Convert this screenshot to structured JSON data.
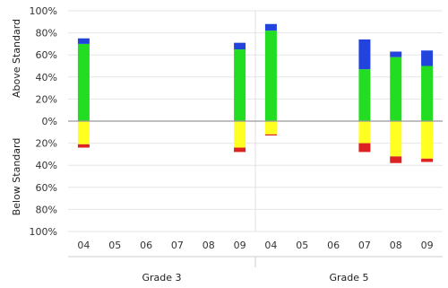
{
  "chart_data": {
    "type": "bar",
    "subtype": "diverging-stacked",
    "ylim": [
      -100,
      100
    ],
    "yticks": [
      {
        "v": 100,
        "label": "100%"
      },
      {
        "v": 80,
        "label": "80%"
      },
      {
        "v": 60,
        "label": "60%"
      },
      {
        "v": 40,
        "label": "40%"
      },
      {
        "v": 20,
        "label": "20%"
      },
      {
        "v": 0,
        "label": "0%"
      },
      {
        "v": -20,
        "label": "20%"
      },
      {
        "v": -40,
        "label": "40%"
      },
      {
        "v": -60,
        "label": "60%"
      },
      {
        "v": -80,
        "label": "80%"
      },
      {
        "v": -100,
        "label": "100%"
      }
    ],
    "ylabel_top": "Above Standard",
    "ylabel_bottom": "Below Standard",
    "grid": true,
    "groups": [
      {
        "label": "Grade 3",
        "categories": [
          "04",
          "05",
          "06",
          "07",
          "08",
          "09"
        ]
      },
      {
        "label": "Grade 5",
        "categories": [
          "04",
          "05",
          "06",
          "07",
          "08",
          "09"
        ]
      }
    ],
    "bars": [
      {
        "group": 0,
        "category": "04",
        "above": [
          {
            "value": 70,
            "color": "#22dd22"
          },
          {
            "value": 5,
            "color": "#2244dd"
          }
        ],
        "below": [
          {
            "value": 21,
            "color": "#ffff22"
          },
          {
            "value": 3,
            "color": "#dd2222"
          }
        ]
      },
      {
        "group": 0,
        "category": "05",
        "above": [],
        "below": []
      },
      {
        "group": 0,
        "category": "06",
        "above": [],
        "below": []
      },
      {
        "group": 0,
        "category": "07",
        "above": [],
        "below": []
      },
      {
        "group": 0,
        "category": "08",
        "above": [],
        "below": []
      },
      {
        "group": 0,
        "category": "09",
        "above": [
          {
            "value": 65,
            "color": "#22dd22"
          },
          {
            "value": 6,
            "color": "#2244dd"
          }
        ],
        "below": [
          {
            "value": 24,
            "color": "#ffff22"
          },
          {
            "value": 4,
            "color": "#dd2222"
          }
        ]
      },
      {
        "group": 1,
        "category": "04",
        "above": [
          {
            "value": 82,
            "color": "#22dd22"
          },
          {
            "value": 6,
            "color": "#2244dd"
          }
        ],
        "below": [
          {
            "value": 12,
            "color": "#ffff22"
          },
          {
            "value": 1,
            "color": "#dd2222"
          }
        ]
      },
      {
        "group": 1,
        "category": "05",
        "above": [],
        "below": []
      },
      {
        "group": 1,
        "category": "06",
        "above": [],
        "below": []
      },
      {
        "group": 1,
        "category": "07",
        "above": [
          {
            "value": 47,
            "color": "#22dd22"
          },
          {
            "value": 27,
            "color": "#2244dd"
          }
        ],
        "below": [
          {
            "value": 20,
            "color": "#ffff22"
          },
          {
            "value": 8,
            "color": "#dd2222"
          }
        ]
      },
      {
        "group": 1,
        "category": "08",
        "above": [
          {
            "value": 58,
            "color": "#22dd22"
          },
          {
            "value": 5,
            "color": "#2244dd"
          }
        ],
        "below": [
          {
            "value": 32,
            "color": "#ffff22"
          },
          {
            "value": 6,
            "color": "#dd2222"
          }
        ]
      },
      {
        "group": 1,
        "category": "09",
        "above": [
          {
            "value": 50,
            "color": "#22dd22"
          },
          {
            "value": 14,
            "color": "#2244dd"
          }
        ],
        "below": [
          {
            "value": 34,
            "color": "#ffff22"
          },
          {
            "value": 3,
            "color": "#dd2222"
          }
        ]
      }
    ]
  }
}
